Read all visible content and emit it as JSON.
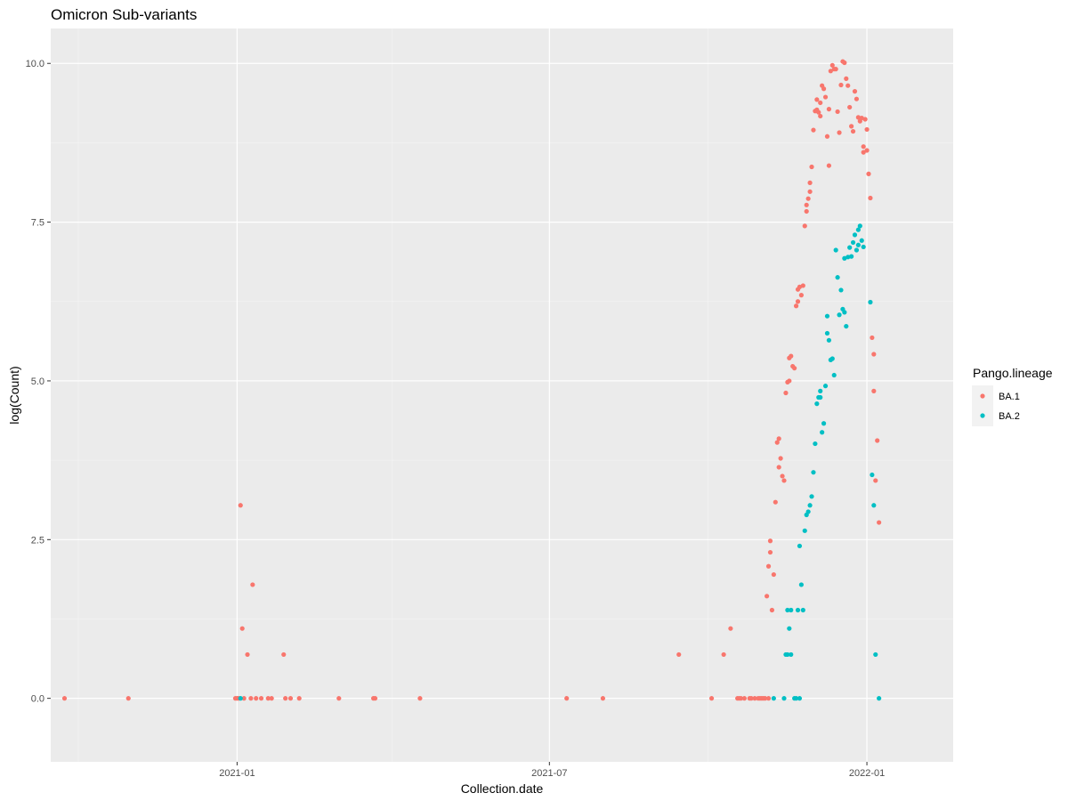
{
  "chart_data": {
    "type": "scatter",
    "title": "Omicron Sub-variants",
    "xlabel": "Collection.date",
    "ylabel": "log(Count)",
    "x_type": "date",
    "xlim": [
      "2020-09-15",
      "2022-02-20"
    ],
    "ylim": [
      -1.0,
      10.55
    ],
    "x_ticks": [
      {
        "value": "2021-01-01",
        "label": "2021-01"
      },
      {
        "value": "2021-07-01",
        "label": "2021-07"
      },
      {
        "value": "2022-01-01",
        "label": "2022-01"
      }
    ],
    "x_minor_ticks": [
      "2020-10-01",
      "2021-04-01",
      "2021-10-01"
    ],
    "y_ticks": [
      {
        "value": 0,
        "label": "0.0"
      },
      {
        "value": 2.5,
        "label": "2.5"
      },
      {
        "value": 5,
        "label": "5.0"
      },
      {
        "value": 7.5,
        "label": "7.5"
      },
      {
        "value": 10,
        "label": "10.0"
      }
    ],
    "y_minor_ticks": [
      1.25,
      3.75,
      6.25,
      8.75
    ],
    "grid": true,
    "background": "#ebebeb",
    "legend": {
      "title": "Pango.lineage",
      "position": "right"
    },
    "series": [
      {
        "name": "BA.1",
        "color": "#f8766d",
        "points": [
          [
            "2020-09-23",
            0
          ],
          [
            "2020-10-30",
            0
          ],
          [
            "2020-12-31",
            0
          ],
          [
            "2021-01-01",
            0
          ],
          [
            "2021-01-02",
            0
          ],
          [
            "2021-01-03",
            3.04
          ],
          [
            "2021-01-04",
            1.1
          ],
          [
            "2021-01-05",
            0
          ],
          [
            "2021-01-07",
            0.69
          ],
          [
            "2021-01-09",
            0
          ],
          [
            "2021-01-10",
            1.79
          ],
          [
            "2021-01-12",
            0
          ],
          [
            "2021-01-15",
            0
          ],
          [
            "2021-01-19",
            0
          ],
          [
            "2021-01-21",
            0
          ],
          [
            "2021-01-28",
            0.69
          ],
          [
            "2021-01-29",
            0
          ],
          [
            "2021-02-01",
            0
          ],
          [
            "2021-02-06",
            0
          ],
          [
            "2021-03-01",
            0
          ],
          [
            "2021-03-21",
            0
          ],
          [
            "2021-03-22",
            0
          ],
          [
            "2021-04-17",
            0
          ],
          [
            "2021-07-11",
            0
          ],
          [
            "2021-08-01",
            0
          ],
          [
            "2021-09-14",
            0.69
          ],
          [
            "2021-10-03",
            0
          ],
          [
            "2021-10-10",
            0.69
          ],
          [
            "2021-10-14",
            1.1
          ],
          [
            "2021-10-18",
            0
          ],
          [
            "2021-10-19",
            0
          ],
          [
            "2021-10-20",
            0
          ],
          [
            "2021-10-22",
            0
          ],
          [
            "2021-10-25",
            0
          ],
          [
            "2021-10-26",
            0
          ],
          [
            "2021-10-28",
            0
          ],
          [
            "2021-10-30",
            0
          ],
          [
            "2021-10-31",
            0
          ],
          [
            "2021-11-01",
            0
          ],
          [
            "2021-11-02",
            0
          ],
          [
            "2021-11-03",
            0
          ],
          [
            "2021-11-05",
            0
          ],
          [
            "2021-11-04",
            1.61
          ],
          [
            "2021-11-05",
            2.08
          ],
          [
            "2021-11-06",
            2.3
          ],
          [
            "2021-11-06",
            2.48
          ],
          [
            "2021-11-07",
            1.39
          ],
          [
            "2021-11-08",
            1.95
          ],
          [
            "2021-11-09",
            3.09
          ],
          [
            "2021-11-10",
            4.03
          ],
          [
            "2021-11-11",
            4.09
          ],
          [
            "2021-11-11",
            3.64
          ],
          [
            "2021-11-12",
            3.78
          ],
          [
            "2021-11-13",
            3.5
          ],
          [
            "2021-11-14",
            3.43
          ],
          [
            "2021-11-15",
            4.81
          ],
          [
            "2021-11-16",
            4.98
          ],
          [
            "2021-11-17",
            5.36
          ],
          [
            "2021-11-17",
            5.0
          ],
          [
            "2021-11-18",
            5.39
          ],
          [
            "2021-11-19",
            5.23
          ],
          [
            "2021-11-20",
            5.2
          ],
          [
            "2021-11-21",
            6.18
          ],
          [
            "2021-11-22",
            6.25
          ],
          [
            "2021-11-22",
            6.44
          ],
          [
            "2021-11-23",
            6.48
          ],
          [
            "2021-11-24",
            6.35
          ],
          [
            "2021-11-25",
            6.5
          ],
          [
            "2021-11-26",
            7.44
          ],
          [
            "2021-11-27",
            7.67
          ],
          [
            "2021-11-27",
            7.77
          ],
          [
            "2021-11-28",
            7.87
          ],
          [
            "2021-11-29",
            7.98
          ],
          [
            "2021-11-29",
            8.12
          ],
          [
            "2021-11-30",
            8.37
          ],
          [
            "2021-12-01",
            8.95
          ],
          [
            "2021-12-02",
            9.25
          ],
          [
            "2021-12-03",
            9.43
          ],
          [
            "2021-12-03",
            9.27
          ],
          [
            "2021-12-04",
            9.23
          ],
          [
            "2021-12-05",
            9.17
          ],
          [
            "2021-12-05",
            9.38
          ],
          [
            "2021-12-06",
            9.65
          ],
          [
            "2021-12-07",
            9.6
          ],
          [
            "2021-12-08",
            9.47
          ],
          [
            "2021-12-09",
            8.85
          ],
          [
            "2021-12-10",
            8.39
          ],
          [
            "2021-12-10",
            9.28
          ],
          [
            "2021-12-11",
            9.88
          ],
          [
            "2021-12-12",
            9.97
          ],
          [
            "2021-12-13",
            9.91
          ],
          [
            "2021-12-14",
            9.91
          ],
          [
            "2021-12-15",
            9.24
          ],
          [
            "2021-12-16",
            8.91
          ],
          [
            "2021-12-17",
            9.66
          ],
          [
            "2021-12-18",
            10.03
          ],
          [
            "2021-12-19",
            10.01
          ],
          [
            "2021-12-20",
            9.76
          ],
          [
            "2021-12-21",
            9.65
          ],
          [
            "2021-12-22",
            9.31
          ],
          [
            "2021-12-23",
            9.01
          ],
          [
            "2021-12-24",
            8.93
          ],
          [
            "2021-12-25",
            9.56
          ],
          [
            "2021-12-26",
            9.44
          ],
          [
            "2021-12-27",
            9.15
          ],
          [
            "2021-12-28",
            9.09
          ],
          [
            "2021-12-29",
            9.14
          ],
          [
            "2021-12-30",
            8.6
          ],
          [
            "2021-12-30",
            8.69
          ],
          [
            "2021-12-31",
            9.12
          ],
          [
            "2022-01-01",
            8.63
          ],
          [
            "2022-01-01",
            8.96
          ],
          [
            "2022-01-02",
            8.26
          ],
          [
            "2022-01-03",
            7.88
          ],
          [
            "2022-01-04",
            5.68
          ],
          [
            "2022-01-05",
            4.84
          ],
          [
            "2022-01-05",
            5.42
          ],
          [
            "2022-01-06",
            3.43
          ],
          [
            "2022-01-07",
            4.06
          ],
          [
            "2022-01-08",
            2.77
          ]
        ]
      },
      {
        "name": "BA.2",
        "color": "#00bfc4",
        "points": [
          [
            "2021-01-03",
            0
          ],
          [
            "2021-11-08",
            0
          ],
          [
            "2021-11-14",
            0
          ],
          [
            "2021-11-15",
            0.69
          ],
          [
            "2021-11-16",
            1.39
          ],
          [
            "2021-11-16",
            0.69
          ],
          [
            "2021-11-17",
            1.1
          ],
          [
            "2021-11-18",
            0.69
          ],
          [
            "2021-11-18",
            1.39
          ],
          [
            "2021-11-20",
            0
          ],
          [
            "2021-11-21",
            0
          ],
          [
            "2021-11-22",
            1.39
          ],
          [
            "2021-11-23",
            0
          ],
          [
            "2021-11-23",
            2.4
          ],
          [
            "2021-11-24",
            1.79
          ],
          [
            "2021-11-25",
            1.39
          ],
          [
            "2021-11-26",
            2.64
          ],
          [
            "2021-11-27",
            2.89
          ],
          [
            "2021-11-28",
            2.94
          ],
          [
            "2021-11-29",
            3.04
          ],
          [
            "2021-11-30",
            3.18
          ],
          [
            "2021-12-01",
            3.56
          ],
          [
            "2021-12-02",
            4.01
          ],
          [
            "2021-12-03",
            4.64
          ],
          [
            "2021-12-04",
            4.74
          ],
          [
            "2021-12-05",
            4.84
          ],
          [
            "2021-12-05",
            4.74
          ],
          [
            "2021-12-06",
            4.19
          ],
          [
            "2021-12-07",
            4.33
          ],
          [
            "2021-12-08",
            4.92
          ],
          [
            "2021-12-09",
            5.75
          ],
          [
            "2021-12-09",
            6.02
          ],
          [
            "2021-12-10",
            5.64
          ],
          [
            "2021-12-11",
            5.33
          ],
          [
            "2021-12-12",
            5.35
          ],
          [
            "2021-12-13",
            5.09
          ],
          [
            "2021-12-14",
            7.06
          ],
          [
            "2021-12-15",
            6.63
          ],
          [
            "2021-12-16",
            6.04
          ],
          [
            "2021-12-17",
            6.43
          ],
          [
            "2021-12-18",
            6.13
          ],
          [
            "2021-12-19",
            6.93
          ],
          [
            "2021-12-19",
            6.08
          ],
          [
            "2021-12-20",
            5.86
          ],
          [
            "2021-12-21",
            6.95
          ],
          [
            "2021-12-22",
            7.1
          ],
          [
            "2021-12-23",
            6.96
          ],
          [
            "2021-12-24",
            7.18
          ],
          [
            "2021-12-25",
            7.3
          ],
          [
            "2021-12-26",
            7.06
          ],
          [
            "2021-12-27",
            7.14
          ],
          [
            "2021-12-27",
            7.38
          ],
          [
            "2021-12-28",
            7.44
          ],
          [
            "2021-12-29",
            7.21
          ],
          [
            "2021-12-30",
            7.11
          ],
          [
            "2022-01-03",
            6.24
          ],
          [
            "2022-01-04",
            3.52
          ],
          [
            "2022-01-05",
            3.04
          ],
          [
            "2022-01-06",
            0.69
          ],
          [
            "2022-01-08",
            0
          ]
        ]
      }
    ]
  }
}
